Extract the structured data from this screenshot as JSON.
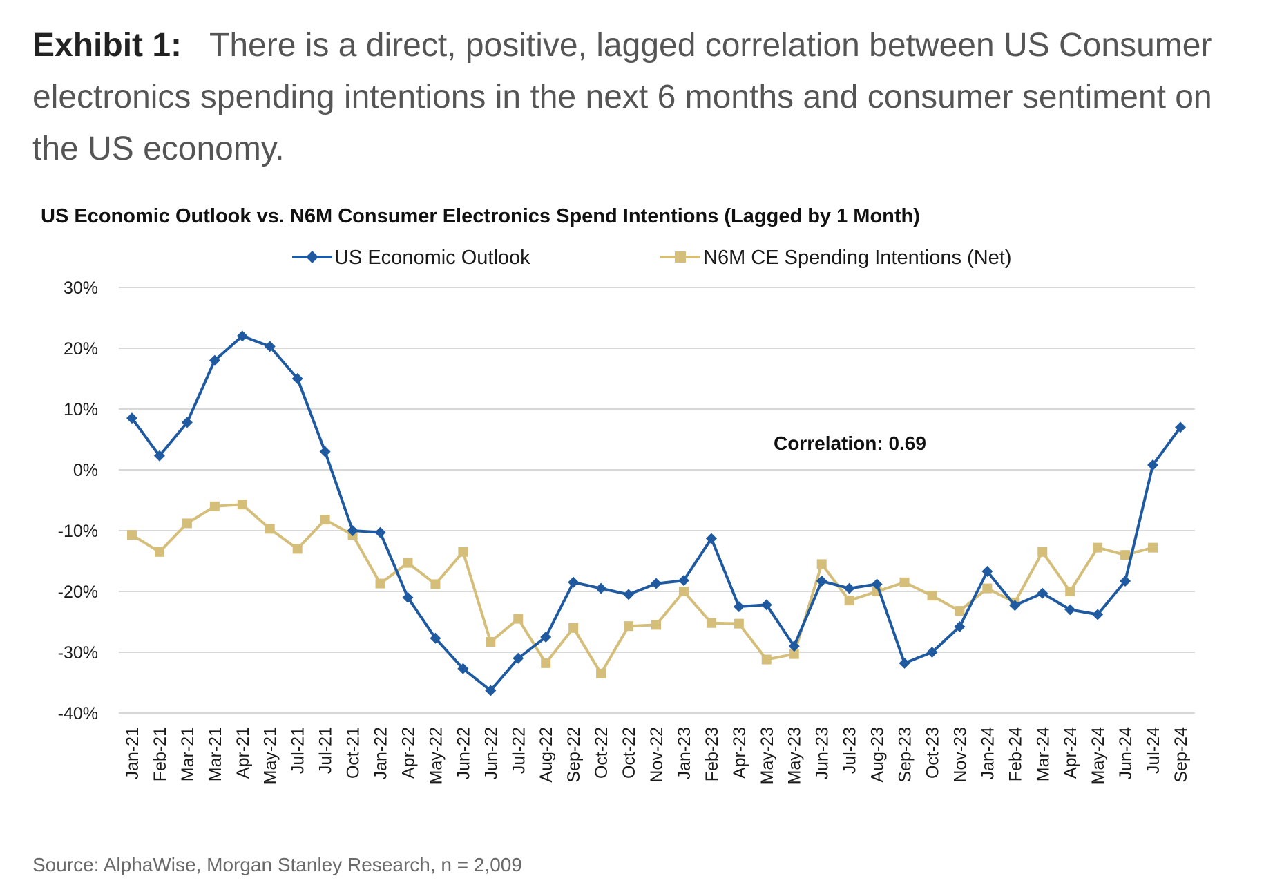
{
  "exhibit": {
    "label": "Exhibit 1:",
    "text": "There is a direct, positive, lagged correlation between US Consumer electronics spending intentions in the next 6 months and consumer sentiment on the US economy."
  },
  "source": "Source: AlphaWise, Morgan Stanley Research, n = 2,009",
  "colors": {
    "economic_outlook": "#1F5AA0",
    "spending_intentions": "#D4BE7A",
    "grid": "#d9d9d9"
  },
  "chart_data": {
    "type": "line",
    "title": "US Economic Outlook vs. N6M Consumer Electronics Spend Intentions (Lagged by 1 Month)",
    "xlabel": "",
    "ylabel": "",
    "ylim": [
      -40,
      30
    ],
    "yticks": [
      30,
      20,
      10,
      0,
      -10,
      -20,
      -30,
      -40
    ],
    "ytick_labels": [
      "30%",
      "20%",
      "10%",
      "0%",
      "-10%",
      "-20%",
      "-30%",
      "-40%"
    ],
    "grid": true,
    "legend_position": "top-center",
    "annotation": "Correlation: 0.69",
    "categories": [
      "Jan-21",
      "Feb-21",
      "Mar-21",
      "Mar-21",
      "Apr-21",
      "May-21",
      "Jul-21",
      "Jul-21",
      "Oct-21",
      "Jan-22",
      "Apr-22",
      "May-22",
      "Jun-22",
      "Jun-22",
      "Jul-22",
      "Aug-22",
      "Sep-22",
      "Oct-22",
      "Oct-22",
      "Nov-22",
      "Jan-23",
      "Feb-23",
      "Apr-23",
      "May-23",
      "May-23",
      "Jun-23",
      "Jul-23",
      "Aug-23",
      "Sep-23",
      "Oct-23",
      "Nov-23",
      "Jan-24",
      "Feb-24",
      "Mar-24",
      "Apr-24",
      "May-24",
      "Jun-24",
      "Jul-24",
      "Sep-24"
    ],
    "series": [
      {
        "name": "US Economic Outlook",
        "marker": "diamond",
        "values": [
          8.5,
          2.3,
          7.8,
          18.0,
          22.0,
          20.3,
          15.0,
          3.0,
          -10.0,
          -10.3,
          -21.0,
          -27.7,
          -32.7,
          -36.3,
          -31.0,
          -27.5,
          -18.5,
          -19.5,
          -20.5,
          -18.7,
          -18.2,
          -11.3,
          -22.5,
          -22.2,
          -29.0,
          -18.3,
          -19.5,
          -18.8,
          -31.8,
          -30.0,
          -25.8,
          -16.7,
          -22.3,
          -20.3,
          -23.0,
          -23.8,
          -18.3,
          0.8,
          7.0
        ]
      },
      {
        "name": "N6M CE Spending Intentions (Net)",
        "marker": "square",
        "values": [
          -10.7,
          -13.5,
          -8.8,
          -6.0,
          -5.7,
          -9.7,
          -13.0,
          -8.2,
          -10.7,
          -18.7,
          -15.3,
          -18.8,
          -13.5,
          -28.3,
          -24.5,
          -31.8,
          -26.0,
          -33.5,
          -25.7,
          -25.5,
          -20.0,
          -25.2,
          -25.3,
          -31.2,
          -30.3,
          -15.5,
          -21.5,
          -20.0,
          -18.5,
          -20.7,
          -23.2,
          -19.5,
          -21.8,
          -13.5,
          -20.0,
          -12.8,
          -14.0,
          -12.8,
          null
        ]
      }
    ]
  }
}
